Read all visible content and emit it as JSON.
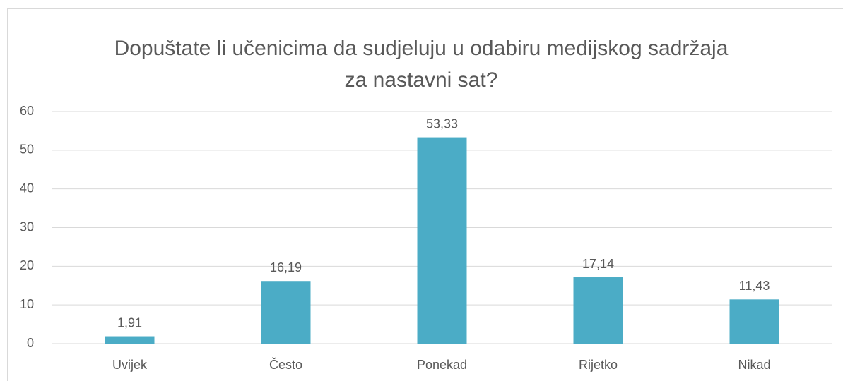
{
  "chart_data": {
    "type": "bar",
    "title": "Dopuštate li učenicima da sudjeluju u odabiru medijskog sadržaja za nastavni sat?",
    "categories": [
      "Uvijek",
      "Često",
      "Ponekad",
      "Rijetko",
      "Nikad"
    ],
    "values": [
      1.91,
      16.19,
      53.33,
      17.14,
      11.43
    ],
    "value_labels": [
      "1,91",
      "16,19",
      "53,33",
      "17,14",
      "11,43"
    ],
    "color": "#4bacc6",
    "ylim": [
      0,
      60
    ],
    "yticks": [
      0,
      10,
      20,
      30,
      40,
      50,
      60
    ],
    "grid": true
  }
}
